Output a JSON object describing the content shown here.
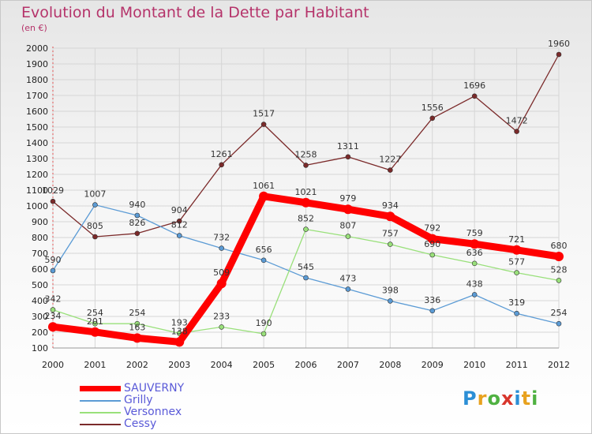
{
  "chart_data": {
    "type": "line",
    "title": "Evolution du Montant de la Dette par Habitant",
    "unit_label": "(en €)",
    "x": [
      "2000",
      "2001",
      "2002",
      "2003",
      "2004",
      "2005",
      "2006",
      "2007",
      "2008",
      "2009",
      "2010",
      "2011",
      "2012"
    ],
    "ylim": [
      100,
      2000
    ],
    "yticks": [
      100,
      200,
      300,
      400,
      500,
      600,
      700,
      800,
      900,
      1000,
      1100,
      1200,
      1300,
      1400,
      1500,
      1600,
      1700,
      1800,
      1900,
      2000
    ],
    "grid": true,
    "series": [
      {
        "name": "SAUVERNY",
        "color": "#ff0000",
        "values": [
          234,
          201,
          163,
          138,
          509,
          1061,
          1021,
          979,
          934,
          792,
          759,
          721,
          680
        ],
        "labels": [
          "234",
          "201",
          "163",
          "138",
          "509",
          "1061",
          "1021",
          "979",
          "934",
          "792",
          "759",
          "721",
          "680"
        ]
      },
      {
        "name": "Grilly",
        "color": "#5b9bd5",
        "values": [
          590,
          1007,
          940,
          812,
          732,
          656,
          545,
          473,
          398,
          336,
          438,
          319,
          254
        ],
        "labels": [
          "590",
          "1007",
          "940",
          "812",
          "732",
          "656",
          "545",
          "473",
          "398",
          "336",
          "438",
          "319",
          "254"
        ]
      },
      {
        "name": "Versonnex",
        "color": "#99e07a",
        "values": [
          342,
          254,
          254,
          193,
          233,
          190,
          852,
          807,
          757,
          690,
          636,
          577,
          528
        ],
        "labels": [
          "342",
          "254",
          "254",
          "193",
          "233",
          "190",
          "852",
          "807",
          "757",
          "690",
          "636",
          "577",
          "528"
        ]
      },
      {
        "name": "Cessy",
        "color": "#7b2a2a",
        "values": [
          1029,
          805,
          826,
          904,
          1261,
          1517,
          1258,
          1311,
          1227,
          1556,
          1696,
          1472,
          1960
        ],
        "labels": [
          "1029",
          "805",
          "826",
          "904",
          "1261",
          "1517",
          "1258",
          "1311",
          "1227",
          "1556",
          "1696",
          "1472",
          "1960"
        ]
      }
    ],
    "legend_position": "bottom-left"
  },
  "logo_text": [
    "P",
    "r",
    "o",
    "x",
    "i",
    "t",
    "i"
  ]
}
